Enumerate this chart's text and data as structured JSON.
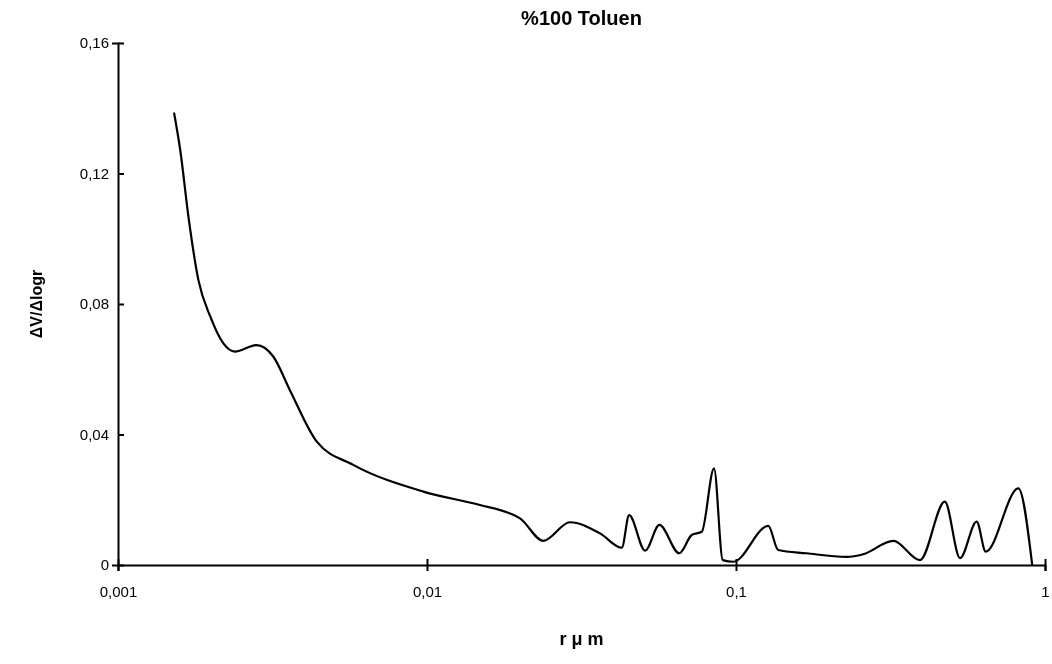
{
  "chart_data": {
    "type": "line",
    "title": "%100 Toluen",
    "xlabel": "r μ m",
    "ylabel": "ΔV/Δlogr",
    "log": "x",
    "grid": false,
    "marker": "none",
    "line_style": "solid",
    "xlim": [
      0.001,
      1
    ],
    "xticks": [
      {
        "value": 0.001,
        "label": "0,001"
      },
      {
        "value": 0.01,
        "label": "0,01"
      },
      {
        "value": 0.1,
        "label": "0,1"
      },
      1
    ],
    "ylim": [
      0,
      0.16
    ],
    "yticks": [
      0,
      {
        "value": 0.04,
        "label": "0,04"
      },
      {
        "value": 0.08,
        "label": "0,08"
      },
      {
        "value": 0.12,
        "label": "0,12"
      },
      {
        "value": 0.16,
        "label": "0,16"
      }
    ],
    "series": [
      {
        "color": "#000000",
        "x": [
          0.00152,
          0.00159,
          0.00169,
          0.00182,
          0.00199,
          0.00219,
          0.00239,
          0.00281,
          0.00318,
          0.0036,
          0.0044,
          0.00577,
          0.00973,
          0.01484,
          0.01856,
          0.02,
          0.0238,
          0.029,
          0.0363,
          0.0427,
          0.0451,
          0.0508,
          0.0565,
          0.0655,
          0.0719,
          0.0775,
          0.0849,
          0.0906,
          0.098,
          0.1272,
          0.137,
          0.169,
          0.228,
          0.258,
          0.323,
          0.394,
          0.474,
          0.531,
          0.601,
          0.643,
          0.82,
          0.909
        ],
        "values": [
          0.1384,
          0.1272,
          0.1068,
          0.0874,
          0.0761,
          0.068,
          0.0654,
          0.0674,
          0.0639,
          0.0536,
          0.0378,
          0.0307,
          0.0225,
          0.0184,
          0.0158,
          0.0143,
          0.0074,
          0.0131,
          0.0097,
          0.0053,
          0.0153,
          0.0044,
          0.0123,
          0.0036,
          0.0092,
          0.0102,
          0.0296,
          0.0015,
          0.001,
          0.012,
          0.0046,
          0.0036,
          0.0025,
          0.0033,
          0.0074,
          0.0015,
          0.0194,
          0.0021,
          0.0133,
          0.0041,
          0.0235,
          0
        ]
      }
    ]
  }
}
